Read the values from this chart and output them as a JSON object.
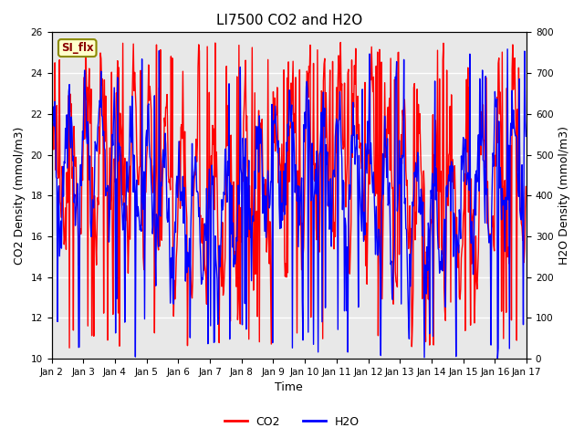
{
  "title": "LI7500 CO2 and H2O",
  "xlabel": "Time",
  "ylabel_left": "CO2 Density (mmol/m3)",
  "ylabel_right": "H2O Density (mmol/m3)",
  "ylim_left": [
    10,
    26
  ],
  "ylim_right": [
    0,
    800
  ],
  "yticks_left": [
    10,
    12,
    14,
    16,
    18,
    20,
    22,
    24,
    26
  ],
  "yticks_right": [
    0,
    100,
    200,
    300,
    400,
    500,
    600,
    700,
    800
  ],
  "xtick_labels": [
    "Jan 2",
    "Jan 3",
    "Jan 4",
    "Jan 5",
    "Jan 6",
    "Jan 7",
    "Jan 8",
    "Jan 9",
    "Jan 10",
    "Jan 11",
    "Jan 12",
    "Jan 13",
    "Jan 14",
    "Jan 15",
    "Jan 16",
    "Jan 17"
  ],
  "legend_labels": [
    "CO2",
    "H2O"
  ],
  "annotation_text": "SI_flx",
  "annotation_color": "#8B0000",
  "annotation_bg": "#FFFFCC",
  "annotation_border": "#8B8B00",
  "co2_color": "red",
  "h2o_color": "blue",
  "line_width": 1.0,
  "bg_color": "#E8E8E8",
  "title_fontsize": 11,
  "tick_fontsize": 7.5,
  "label_fontsize": 9
}
